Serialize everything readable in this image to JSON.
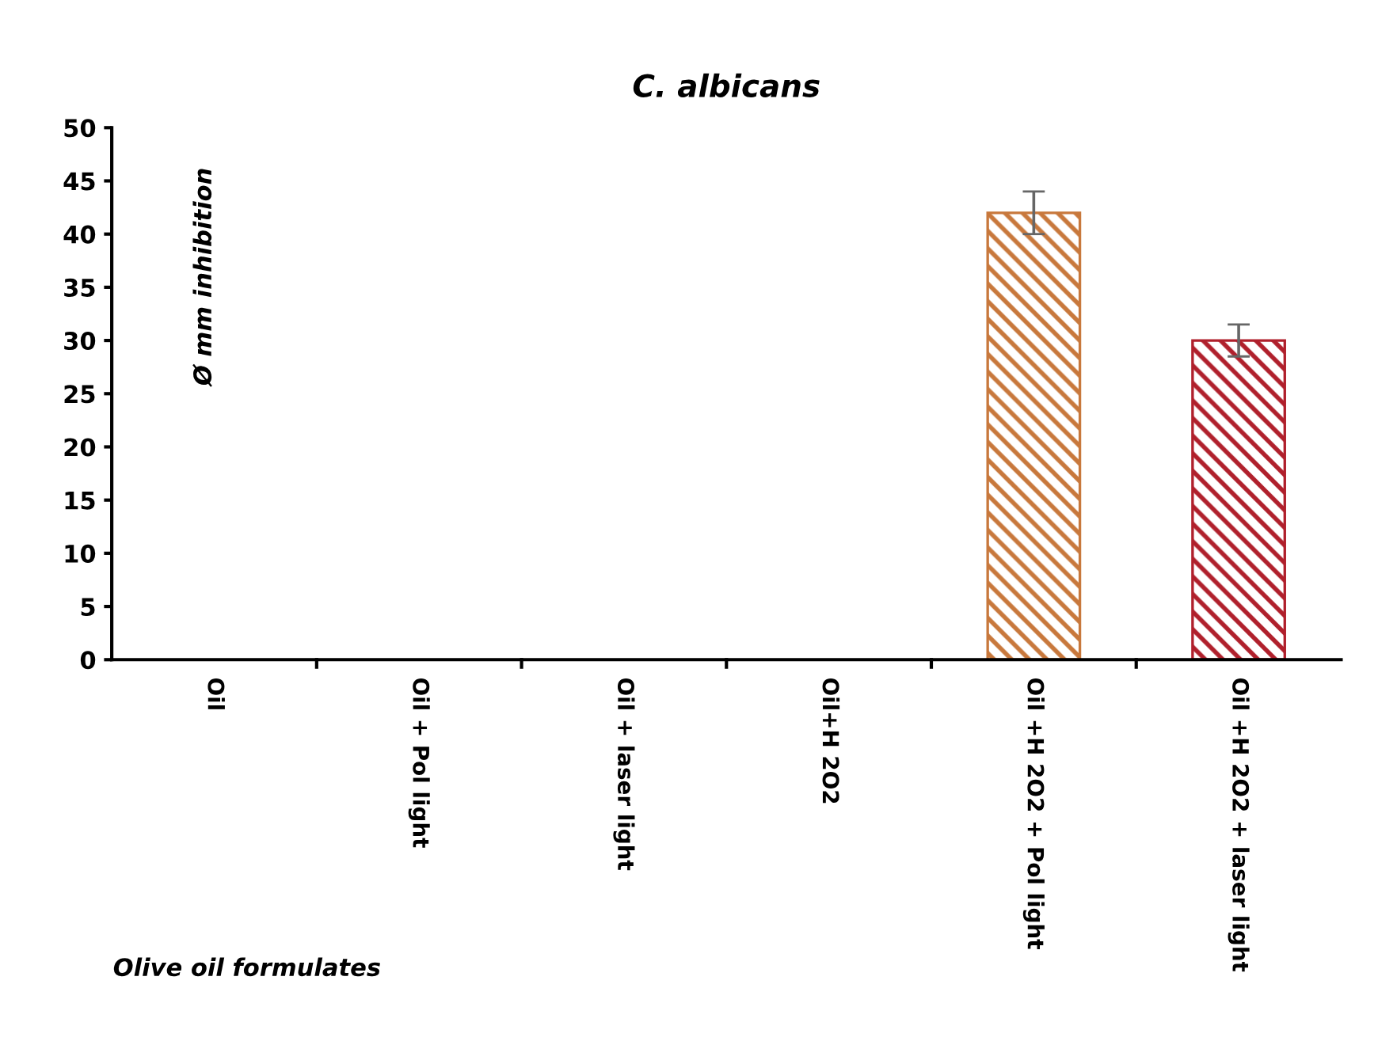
{
  "chart_data": {
    "type": "bar",
    "title": "C. albicans",
    "ylabel": "Ø mm inhibition",
    "xlabel": "Olive oil formulates",
    "categories": [
      "Oil",
      "Oil + Pol light",
      "Oil + laser light",
      "Oil+H 2O2",
      "Oil +H 2O2 + Pol light",
      "Oil +H 2O2 + laser light"
    ],
    "values": [
      null,
      null,
      null,
      null,
      42,
      30
    ],
    "errors": [
      null,
      null,
      null,
      null,
      2,
      1.5
    ],
    "colors": [
      null,
      null,
      null,
      null,
      "#c8783c",
      "#b0202c"
    ],
    "ylim": [
      0,
      50
    ],
    "yticks": [
      0,
      5,
      10,
      15,
      20,
      25,
      30,
      35,
      40,
      45,
      50
    ],
    "grid": false
  }
}
